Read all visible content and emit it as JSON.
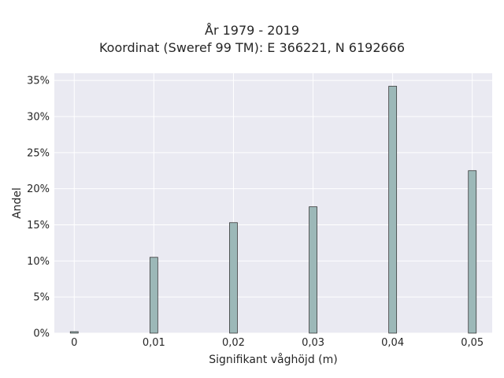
{
  "chart_data": {
    "type": "bar",
    "title": "År 1979 - 2019",
    "subtitle": "Koordinat (Sweref 99 TM): E 366221, N 6192666",
    "xlabel": "Signifikant våghöjd (m)",
    "ylabel": "Andel",
    "x": [
      0,
      0.01,
      0.02,
      0.03,
      0.04,
      0.05
    ],
    "values": [
      0.2,
      10.5,
      15.3,
      17.5,
      34.2,
      22.5
    ],
    "xlim": [
      -0.0025,
      0.0525
    ],
    "ylim": [
      0,
      36
    ],
    "xticks": [
      0,
      0.01,
      0.02,
      0.03,
      0.04,
      0.05
    ],
    "xtick_labels": [
      "0",
      "0,01",
      "0,02",
      "0,03",
      "0,04",
      "0,05"
    ],
    "yticks": [
      0,
      5,
      10,
      15,
      20,
      25,
      30,
      35
    ],
    "ytick_labels": [
      "0%",
      "5%",
      "10%",
      "15%",
      "20%",
      "25%",
      "30%",
      "35%"
    ],
    "grid": true,
    "colors": {
      "bar": "#9cb8b8",
      "edge": "#3a3a3a",
      "background": "#eaeaf2",
      "grid": "#ffffff"
    }
  }
}
